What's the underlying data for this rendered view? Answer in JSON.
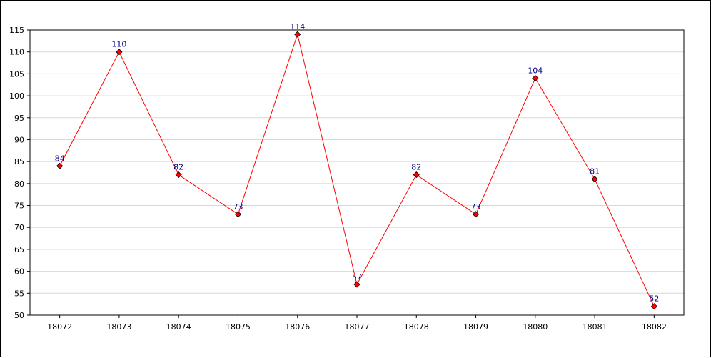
{
  "chart_data": {
    "type": "line",
    "title": "",
    "xlabel": "",
    "ylabel": "",
    "categories": [
      "18072",
      "18073",
      "18074",
      "18075",
      "18076",
      "18077",
      "18078",
      "18079",
      "18080",
      "18081",
      "18082"
    ],
    "series": [
      {
        "values": [
          84,
          110,
          82,
          73,
          114,
          57,
          82,
          73,
          104,
          81,
          52
        ]
      }
    ],
    "ylim": [
      50,
      115
    ],
    "yticks": [
      50,
      55,
      60,
      65,
      70,
      75,
      80,
      85,
      90,
      95,
      100,
      105,
      110,
      115
    ],
    "grid": true,
    "show_data_labels": true,
    "line_color": "#ff0000",
    "marker_color": "#ff0000",
    "label_color": "#000080",
    "grid_color": "#d8d8d8"
  }
}
